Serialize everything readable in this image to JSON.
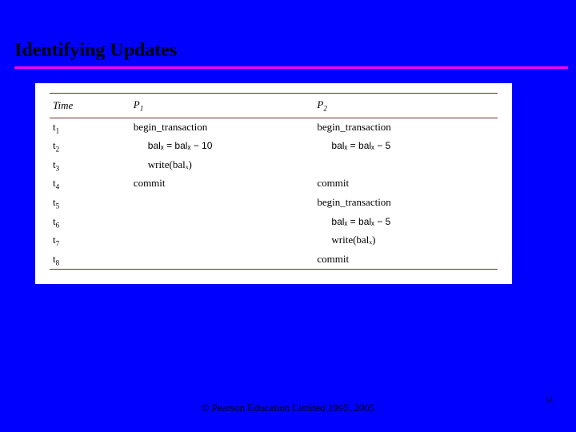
{
  "slide": {
    "title": "Identifying Updates",
    "footer": "© Pearson Education Limited 1995, 2005",
    "pageNumber": "51"
  },
  "table": {
    "headers": {
      "time": "Time",
      "p1": "P",
      "p1sub": "1",
      "p2": "P",
      "p2sub": "2"
    },
    "rows": [
      {
        "t": "t",
        "tsub": "1",
        "p1": "begin_transaction",
        "p1_indent": false,
        "p1_sans": false,
        "p2": "begin_transaction",
        "p2_indent": false,
        "p2_sans": false
      },
      {
        "t": "t",
        "tsub": "2",
        "p1": "balₓ = balₓ − 10",
        "p1_indent": true,
        "p1_sans": true,
        "p2": "balₓ = balₓ − 5",
        "p2_indent": true,
        "p2_sans": true
      },
      {
        "t": "t",
        "tsub": "3",
        "p1": "write(balₓ)",
        "p1_indent": true,
        "p1_sans": false,
        "p2": "",
        "p2_indent": false,
        "p2_sans": false
      },
      {
        "t": "t",
        "tsub": "4",
        "p1": "commit",
        "p1_indent": false,
        "p1_sans": false,
        "p2": "commit",
        "p2_indent": false,
        "p2_sans": false
      },
      {
        "t": "t",
        "tsub": "5",
        "p1": "",
        "p1_indent": false,
        "p1_sans": false,
        "p2": "begin_transaction",
        "p2_indent": false,
        "p2_sans": false
      },
      {
        "t": "t",
        "tsub": "6",
        "p1": "",
        "p1_indent": false,
        "p1_sans": false,
        "p2": "balₓ = balₓ − 5",
        "p2_indent": true,
        "p2_sans": true
      },
      {
        "t": "t",
        "tsub": "7",
        "p1": "",
        "p1_indent": false,
        "p1_sans": false,
        "p2": "write(balₓ)",
        "p2_indent": true,
        "p2_sans": false
      },
      {
        "t": "t",
        "tsub": "8",
        "p1": "",
        "p1_indent": false,
        "p1_sans": false,
        "p2": "commit",
        "p2_indent": false,
        "p2_sans": false
      }
    ]
  },
  "style": {
    "background": "#0000ff",
    "underline_color": "#ff00ff",
    "rule_color": "#7a2a2a",
    "content_bg": "#ffffff"
  }
}
